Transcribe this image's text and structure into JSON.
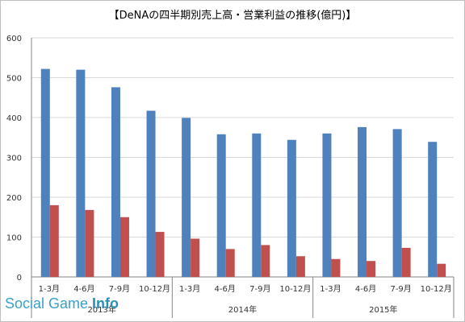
{
  "title": "【DeNAの四半期別売上高・営業利益の推移(億円)】",
  "watermark": {
    "light": "Social Game ",
    "bold": "Info"
  },
  "chart_data": {
    "type": "bar",
    "title": "【DeNAの四半期別売上高・営業利益の推移(億円)】",
    "categories": [
      "1-3月",
      "4-6月",
      "7-9月",
      "10-12月",
      "1-3月",
      "4-6月",
      "7-9月",
      "10-12月",
      "1-3月",
      "4-6月",
      "7-9月",
      "10-12月"
    ],
    "groups": [
      {
        "label": "2013年",
        "count": 4
      },
      {
        "label": "2014年",
        "count": 4
      },
      {
        "label": "2015年",
        "count": 4
      }
    ],
    "series": [
      {
        "values": [
          522,
          520,
          476,
          417,
          399,
          358,
          360,
          344,
          360,
          376,
          371,
          339
        ],
        "color": "#4f81bd"
      },
      {
        "values": [
          180,
          168,
          150,
          113,
          96,
          70,
          80,
          52,
          45,
          40,
          73,
          33
        ],
        "color": "#c0504d"
      }
    ],
    "ylim": [
      0,
      600
    ],
    "yticks": [
      0,
      100,
      200,
      300,
      400,
      500,
      600
    ],
    "grid": true,
    "legend": "none",
    "xlabel": "",
    "ylabel": ""
  }
}
